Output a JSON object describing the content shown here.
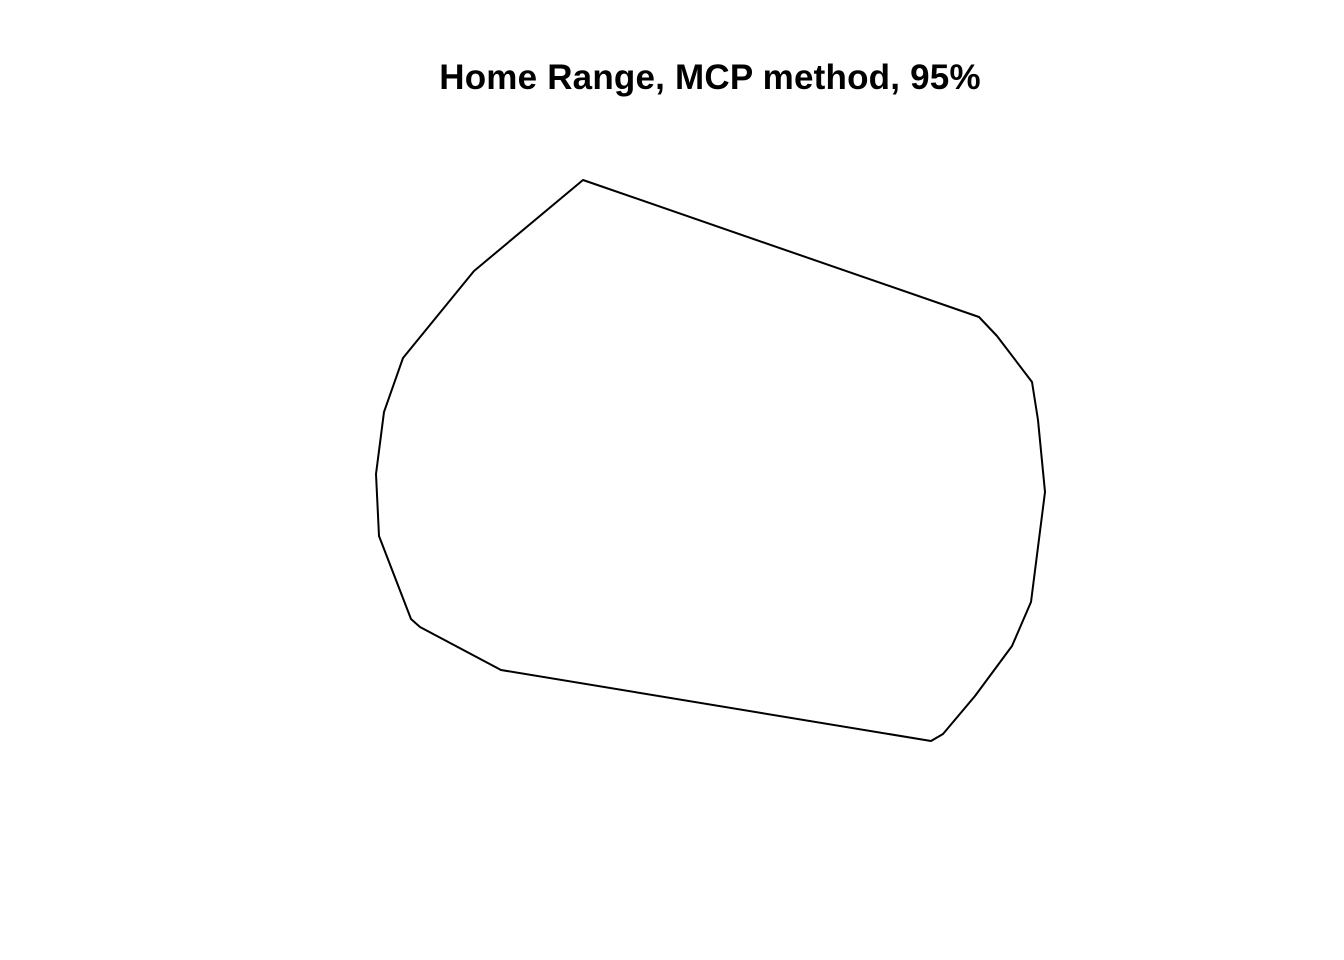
{
  "chart_data": {
    "type": "polygon",
    "title": "Home Range, MCP method, 95%",
    "xlabel": "",
    "ylabel": "",
    "axes_shown": false,
    "grid": false,
    "stroke_color": "#000000",
    "fill": "none",
    "polygon_vertices": [
      [
        583,
        180
      ],
      [
        979,
        317
      ],
      [
        997,
        336
      ],
      [
        1032,
        382
      ],
      [
        1038,
        420
      ],
      [
        1045,
        492
      ],
      [
        1031,
        602
      ],
      [
        1012,
        646
      ],
      [
        975,
        696
      ],
      [
        943,
        734
      ],
      [
        931,
        741
      ],
      [
        501,
        670
      ],
      [
        420,
        627
      ],
      [
        411,
        619
      ],
      [
        379,
        536
      ],
      [
        376,
        474
      ],
      [
        384,
        412
      ],
      [
        403,
        358
      ],
      [
        474,
        271
      ]
    ]
  }
}
